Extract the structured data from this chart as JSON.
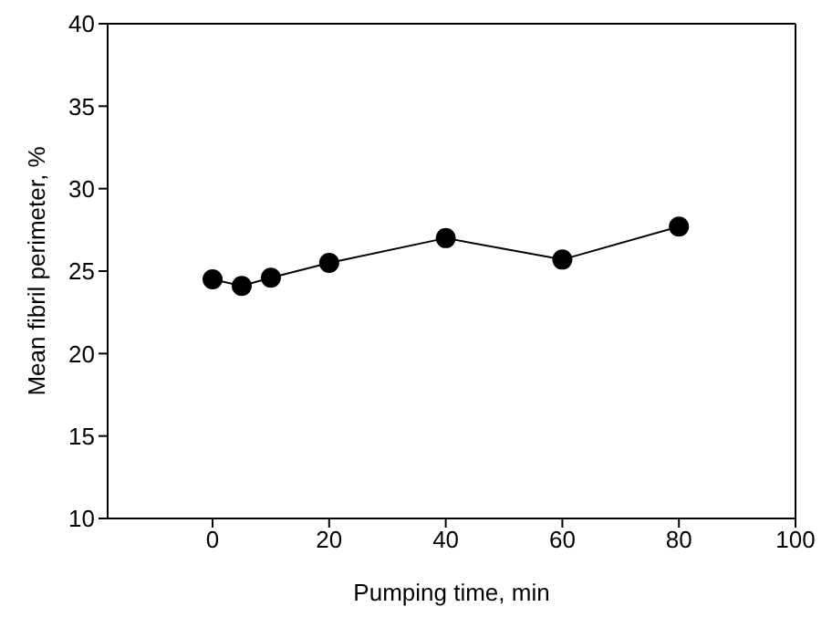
{
  "chart_data": {
    "type": "line",
    "xlabel": "Pumping time, min",
    "ylabel": "Mean fibril perimeter, %",
    "x": [
      0,
      5,
      10,
      20,
      40,
      60,
      80
    ],
    "series": [
      {
        "color": "#000000",
        "values": [
          24.5,
          24.1,
          24.6,
          25.5,
          27.0,
          25.7,
          27.7
        ]
      }
    ],
    "xlim": [
      -18,
      100
    ],
    "xticks": [
      0,
      20,
      40,
      60,
      80,
      100
    ],
    "ylim": [
      10,
      40
    ],
    "yticks": [
      10,
      15,
      20,
      25,
      30,
      35,
      40
    ],
    "marker": "circle",
    "line_style": "solid",
    "grid": false,
    "legend": false
  }
}
